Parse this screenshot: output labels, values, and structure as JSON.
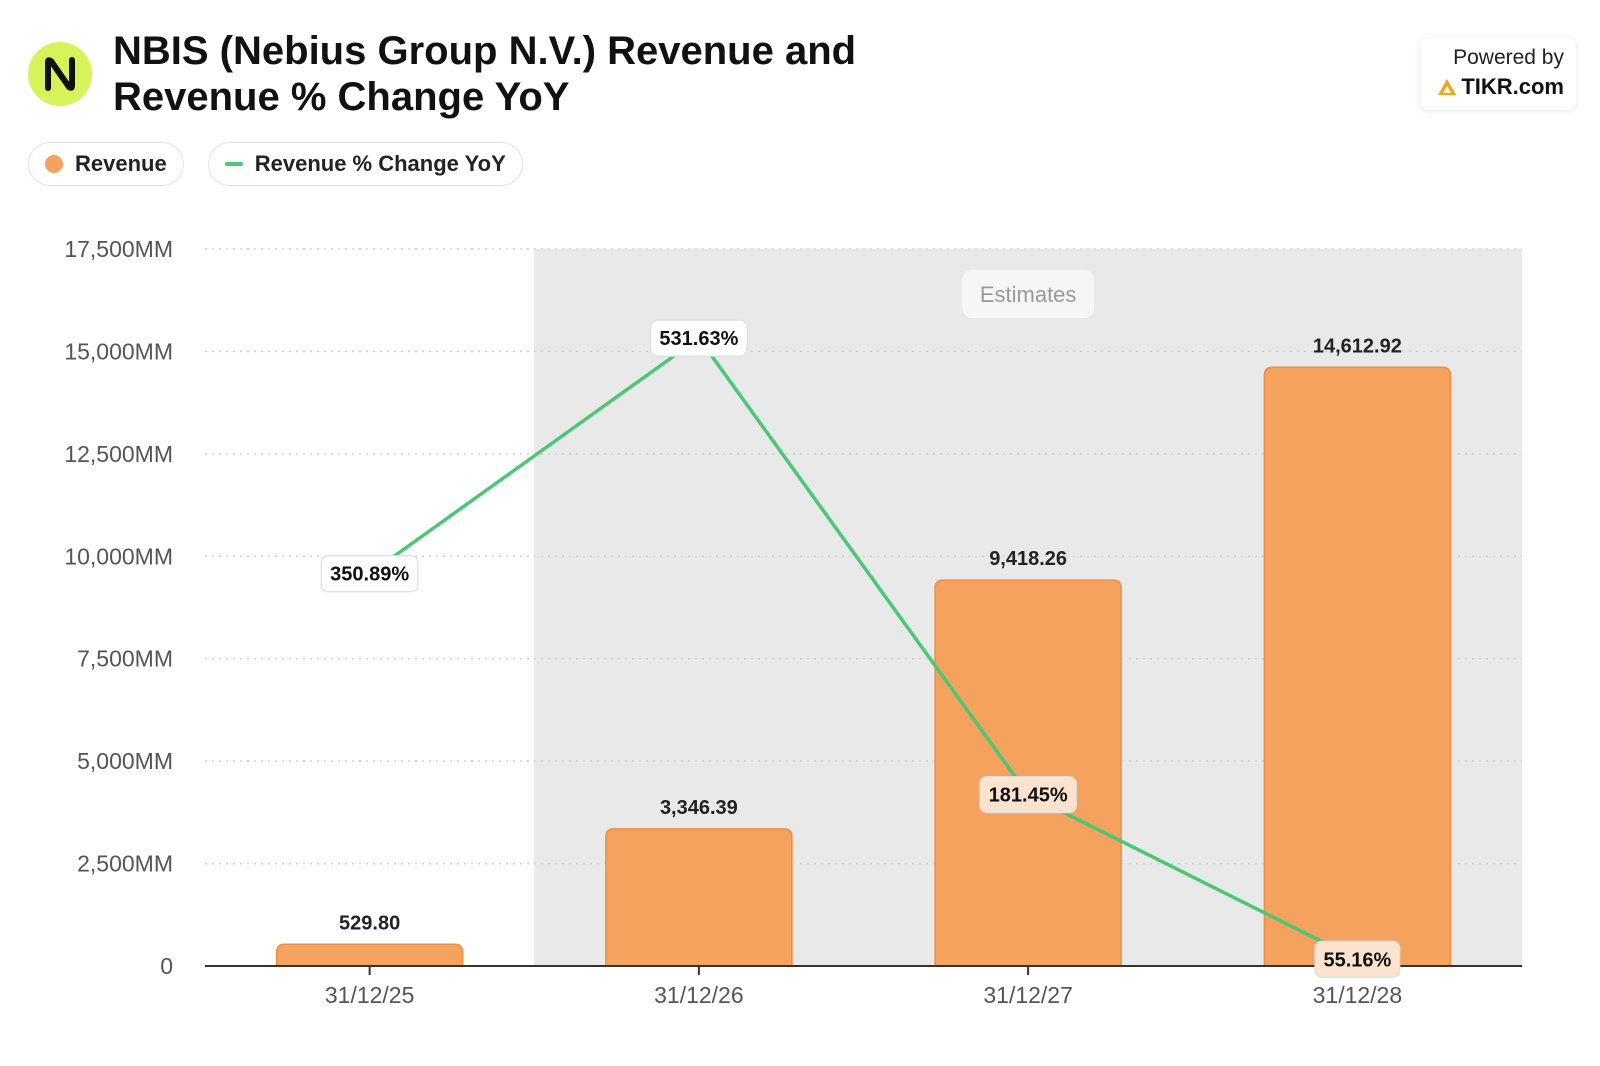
{
  "header": {
    "title": "NBIS (Nebius Group N.V.) Revenue and Revenue % Change YoY",
    "logo_letter": "N",
    "powered_by": "Powered by",
    "brand": "TIKR.com"
  },
  "colors": {
    "bar": "#f5a25e",
    "bar_stroke": "#ec8f45",
    "line": "#4cc776",
    "estimates_bg": "#e9e9e9",
    "logo_bg": "#d8f35a",
    "brand_accent": "#f2a516"
  },
  "estimates_label": "Estimates",
  "chart_data": {
    "type": "bar",
    "categories": [
      "31/12/25",
      "31/12/26",
      "31/12/27",
      "31/12/28"
    ],
    "series": [
      {
        "name": "Revenue",
        "type": "bar",
        "values": [
          529.8,
          3346.39,
          9418.26,
          14612.92
        ],
        "labels": [
          "529.80",
          "3,346.39",
          "9,418.26",
          "14,612.92"
        ]
      },
      {
        "name": "Revenue % Change YoY",
        "type": "line",
        "values": [
          350.89,
          531.63,
          181.45,
          55.16
        ],
        "labels": [
          "350.89%",
          "531.63%",
          "181.45%",
          "55.16%"
        ]
      }
    ],
    "y_ticks": [
      "0",
      "2,500MM",
      "5,000MM",
      "7,500MM",
      "10,000MM",
      "12,500MM",
      "15,000MM",
      "17,500MM"
    ],
    "ylim": [
      0,
      17500
    ],
    "y2lim": [
      50,
      600
    ],
    "estimates_from_index": 1,
    "grid": true,
    "legend": "top-left"
  }
}
